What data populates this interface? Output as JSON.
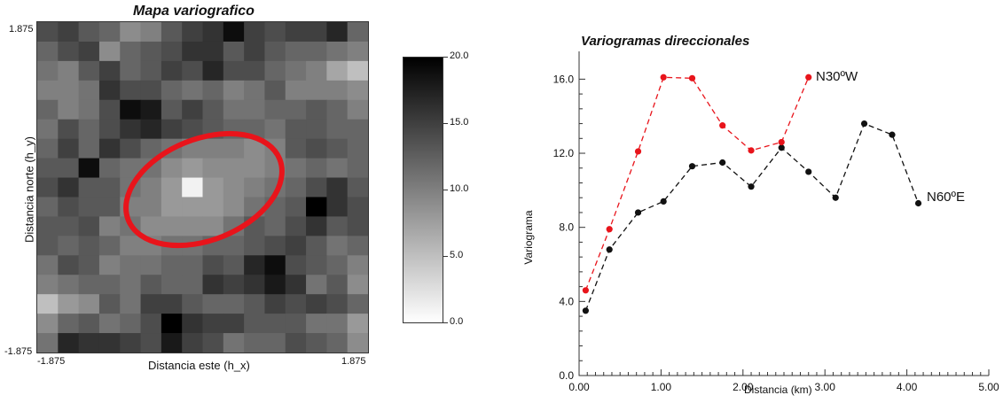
{
  "chart_data": [
    {
      "type": "heatmap",
      "title": "Mapa variografico",
      "xlabel": "Distancia este (h_x)",
      "ylabel": "Distancia norte (h_y)",
      "x_range": [
        -1.875,
        1.875
      ],
      "y_range": [
        -1.875,
        1.875
      ],
      "x_tick_labels": [
        "-1.875",
        "1.875"
      ],
      "y_tick_labels": [
        "1.875",
        "-1.875"
      ],
      "colorbar": {
        "min": 0.0,
        "max": 20.0,
        "tick_labels": [
          "20.0",
          "15.0",
          "10.0",
          "5.0",
          "0.0"
        ],
        "tick_values": [
          20,
          15,
          10,
          5,
          0
        ],
        "low_color": "#ffffff",
        "high_color": "#000000"
      },
      "highlight": "ellipse",
      "highlight_color": "#e8141b",
      "grid": [
        [
          14,
          15,
          13,
          12,
          9,
          10,
          13,
          15,
          16,
          19,
          15,
          14,
          15,
          15,
          17,
          12
        ],
        [
          12,
          14,
          15,
          9,
          12,
          13,
          14,
          16,
          16,
          13,
          15,
          13,
          12,
          12,
          11,
          10
        ],
        [
          11,
          10,
          13,
          15,
          12,
          13,
          15,
          14,
          17,
          14,
          14,
          12,
          11,
          10,
          7,
          5
        ],
        [
          10,
          10,
          11,
          16,
          14,
          14,
          12,
          11,
          12,
          10,
          11,
          13,
          10,
          10,
          10,
          9
        ],
        [
          12,
          10,
          11,
          14,
          19,
          18,
          13,
          15,
          13,
          11,
          11,
          12,
          12,
          13,
          12,
          10
        ],
        [
          11,
          14,
          12,
          14,
          16,
          17,
          15,
          14,
          13,
          12,
          12,
          11,
          13,
          13,
          12,
          12
        ],
        [
          12,
          15,
          12,
          16,
          14,
          12,
          11,
          10,
          10,
          10,
          9,
          10,
          13,
          14,
          13,
          12
        ],
        [
          13,
          13,
          19,
          12,
          11,
          11,
          9,
          8,
          9,
          9,
          9,
          10,
          11,
          12,
          11,
          12
        ],
        [
          14,
          16,
          13,
          13,
          11,
          10,
          8,
          1,
          8,
          9,
          10,
          11,
          12,
          14,
          16,
          13
        ],
        [
          12,
          14,
          13,
          13,
          10,
          10,
          8,
          8,
          8,
          9,
          11,
          12,
          13,
          20,
          16,
          14
        ],
        [
          13,
          13,
          14,
          10,
          11,
          9,
          9,
          9,
          9,
          11,
          13,
          12,
          14,
          16,
          13,
          14
        ],
        [
          13,
          12,
          13,
          12,
          10,
          10,
          11,
          11,
          12,
          12,
          13,
          14,
          15,
          13,
          11,
          12
        ],
        [
          11,
          14,
          13,
          10,
          11,
          11,
          12,
          12,
          14,
          13,
          17,
          19,
          14,
          13,
          12,
          10
        ],
        [
          10,
          11,
          12,
          12,
          11,
          13,
          12,
          12,
          16,
          15,
          16,
          18,
          16,
          11,
          13,
          9
        ],
        [
          5,
          8,
          9,
          13,
          11,
          15,
          15,
          13,
          12,
          12,
          13,
          15,
          14,
          15,
          14,
          12
        ],
        [
          9,
          12,
          13,
          11,
          12,
          14,
          20,
          16,
          15,
          15,
          13,
          13,
          13,
          11,
          11,
          8
        ],
        [
          11,
          17,
          16,
          16,
          15,
          14,
          18,
          15,
          14,
          11,
          12,
          12,
          14,
          13,
          12,
          9
        ]
      ]
    },
    {
      "type": "line",
      "title": "Variogramas direccionales",
      "xlabel": "Distancia (km)",
      "ylabel": "Variograma",
      "xlim": [
        0,
        5
      ],
      "ylim": [
        0,
        17.5
      ],
      "x_ticks": [
        0,
        1,
        2,
        3,
        4,
        5
      ],
      "x_tick_labels": [
        "0.00",
        "1.00",
        "2.00",
        "3.00",
        "4.00",
        "5.00"
      ],
      "y_ticks": [
        0,
        4,
        8,
        12,
        16
      ],
      "y_tick_labels": [
        "0.0",
        "4.0",
        "8.0",
        "12.0",
        "16.0"
      ],
      "series": [
        {
          "name": "N30ºW",
          "color": "#e8141b",
          "x": [
            0.08,
            0.37,
            0.72,
            1.03,
            1.38,
            1.75,
            2.1,
            2.47,
            2.8
          ],
          "y": [
            4.6,
            7.9,
            12.1,
            16.1,
            16.05,
            13.5,
            12.15,
            12.6,
            16.1
          ]
        },
        {
          "name": "N60ºE",
          "color": "#111111",
          "x": [
            0.08,
            0.37,
            0.72,
            1.03,
            1.38,
            1.75,
            2.1,
            2.47,
            2.8,
            3.13,
            3.48,
            3.82,
            4.14
          ],
          "y": [
            3.5,
            6.8,
            8.8,
            9.4,
            11.3,
            11.5,
            10.2,
            12.3,
            11.0,
            9.6,
            13.6,
            13.0,
            9.3
          ]
        }
      ]
    }
  ]
}
